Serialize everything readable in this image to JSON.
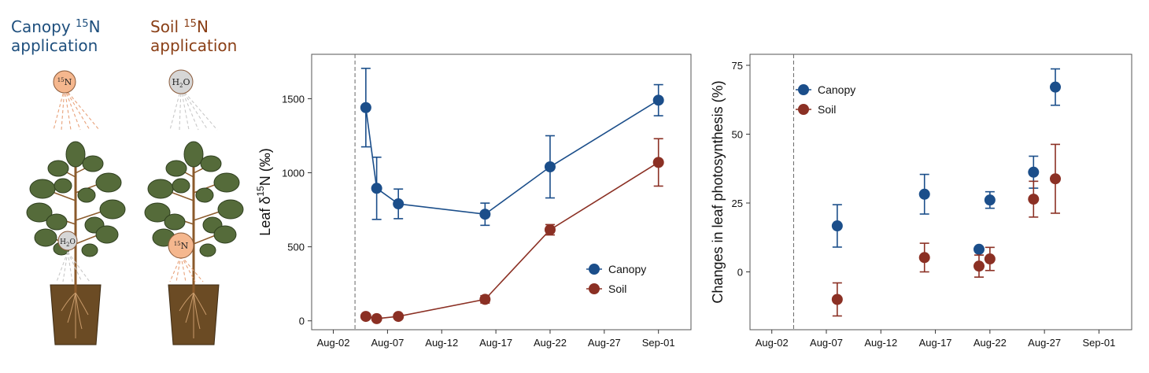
{
  "illustration": {
    "canopy_title": {
      "line1": "Canopy",
      "sup": "15",
      "rest": "N",
      "line2": "application"
    },
    "soil_title": {
      "line1": "Soil",
      "sup": "15",
      "rest": "N",
      "line2": "application"
    },
    "label_15n": "15N",
    "label_h2o": "H2O",
    "colors": {
      "canopy": "#1e4f7d",
      "soil": "#8a3f16",
      "n_ball": "#f5b78e",
      "water_ball": "#d6d6d6",
      "leaf": "#556b3a",
      "pot": "#6b4b24"
    }
  },
  "chart_data": [
    {
      "type": "line",
      "ylabel_main": "Leaf  δ",
      "ylabel_sup": "15",
      "ylabel_rest": "N (‰)",
      "xlim": [
        "Jul-31",
        "Sep-04"
      ],
      "ylim": [
        -60,
        1800
      ],
      "x_ticks": [
        "Aug-02",
        "Aug-07",
        "Aug-12",
        "Aug-17",
        "Aug-22",
        "Aug-27",
        "Sep-01"
      ],
      "y_ticks": [
        0,
        500,
        1000,
        1500
      ],
      "dashed_line_x": "Aug-04",
      "legend": {
        "position": "bottom-right"
      },
      "series": [
        {
          "name": "Canopy",
          "color": "#1b4e8a",
          "x": [
            "Aug-05",
            "Aug-06",
            "Aug-08",
            "Aug-16",
            "Aug-22",
            "Sep-01"
          ],
          "y": [
            1440,
            895,
            790,
            720,
            1040,
            1490
          ],
          "err": [
            265,
            210,
            100,
            75,
            210,
            105
          ]
        },
        {
          "name": "Soil",
          "color": "#8b3024",
          "x": [
            "Aug-05",
            "Aug-06",
            "Aug-08",
            "Aug-16",
            "Aug-22",
            "Sep-01"
          ],
          "y": [
            30,
            15,
            30,
            145,
            615,
            1070
          ],
          "err": [
            0,
            0,
            0,
            25,
            35,
            160
          ]
        }
      ]
    },
    {
      "type": "scatter",
      "ylabel": "Changes in leaf photosynthesis (%)",
      "xlim": [
        "Jul-31",
        "Sep-04"
      ],
      "ylim": [
        -21,
        79
      ],
      "x_ticks": [
        "Aug-02",
        "Aug-07",
        "Aug-12",
        "Aug-17",
        "Aug-22",
        "Aug-27",
        "Sep-01"
      ],
      "y_ticks": [
        0,
        25,
        50,
        75
      ],
      "dashed_line_x": "Aug-04",
      "legend": {
        "position": "top-left"
      },
      "series": [
        {
          "name": "Canopy",
          "color": "#1b4e8a",
          "x": [
            "Aug-08",
            "Aug-16",
            "Aug-21",
            "Aug-22",
            "Aug-26",
            "Aug-28"
          ],
          "y": [
            16.7,
            28.2,
            8.2,
            26.1,
            36.2,
            67.1
          ],
          "err": [
            7.7,
            7.2,
            0,
            3.0,
            5.8,
            6.6
          ]
        },
        {
          "name": "Soil",
          "color": "#8b3024",
          "x": [
            "Aug-08",
            "Aug-16",
            "Aug-21",
            "Aug-22",
            "Aug-26",
            "Aug-28"
          ],
          "y": [
            -10.0,
            5.2,
            2.1,
            4.7,
            26.4,
            33.8
          ],
          "err": [
            6.0,
            5.2,
            4.0,
            4.2,
            6.5,
            12.5
          ]
        }
      ]
    }
  ]
}
